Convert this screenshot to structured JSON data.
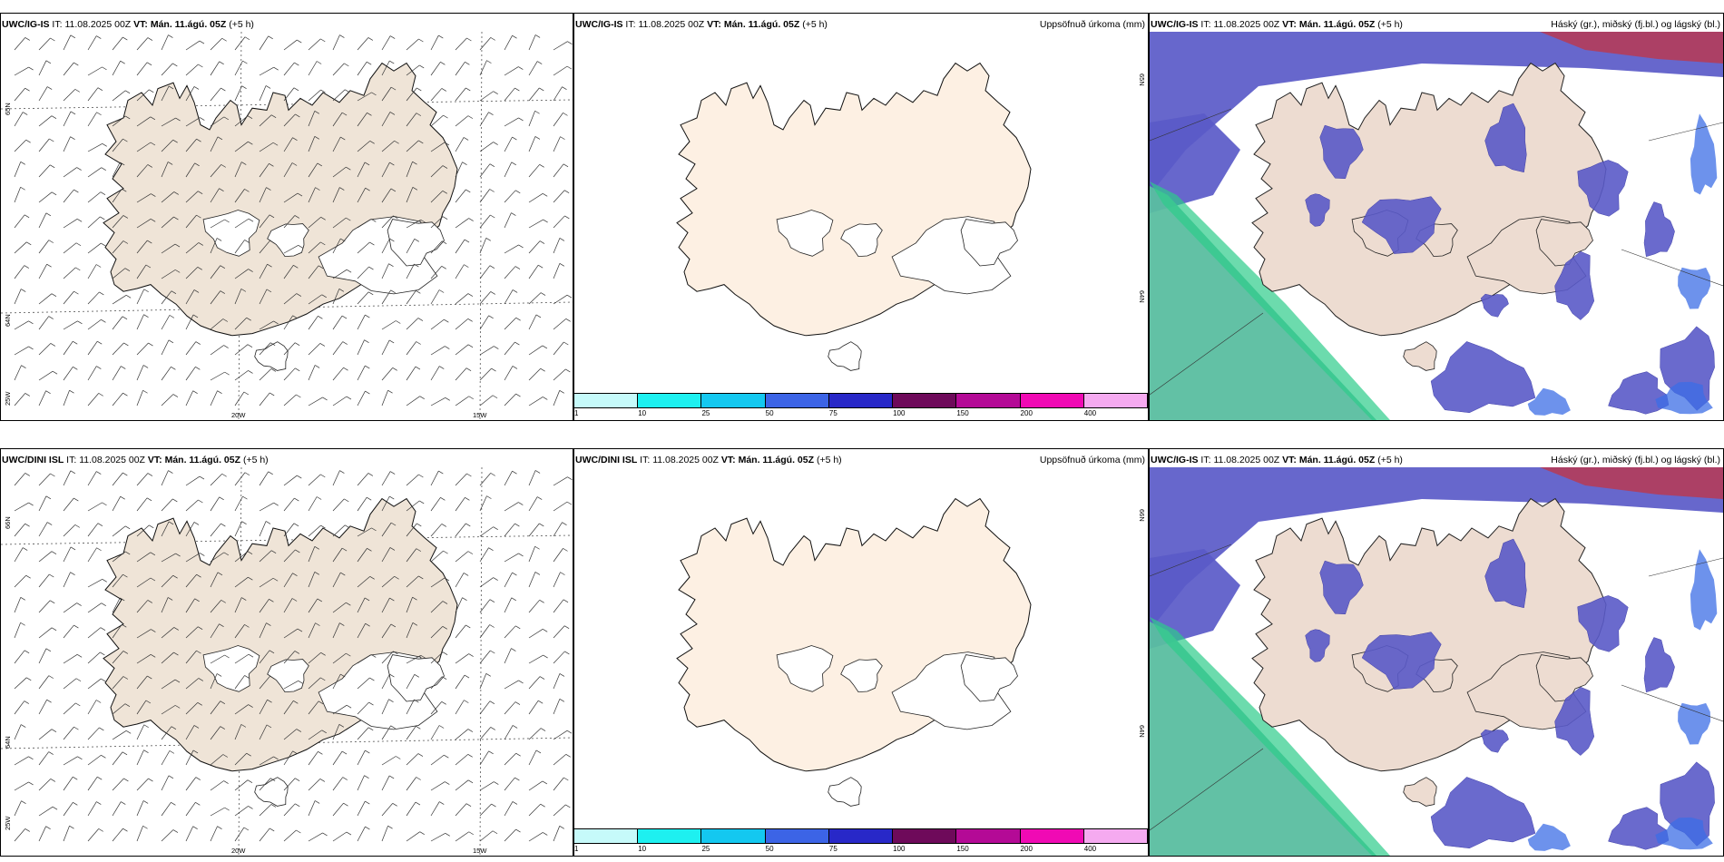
{
  "rows": [
    {
      "wind_panel": {
        "model": "UWC/IG-IS",
        "it_label": "IT:",
        "it_value": "11.08.2025 00Z",
        "vt_label": "VT: Mán. 11.ágú. 05Z",
        "lead": "(+5 h)",
        "lat_labels": [
          "65N",
          "64N",
          "25W"
        ],
        "lon_labels": [
          "20W",
          "15W"
        ]
      },
      "precip_panel": {
        "model": "UWC/IG-IS",
        "it_label": "IT:",
        "it_value": "11.08.2025 00Z",
        "vt_label": "VT: Mán. 11.ágú. 05Z",
        "lead": "(+5 h)",
        "title": "Uppsöfnuð úrkoma (mm)",
        "lat_labels": [
          "65N",
          "64N"
        ]
      },
      "cloud_panel": {
        "model": "UWC/IG-IS",
        "it_label": "IT:",
        "it_value": "11.08.2025 00Z",
        "vt_label": "VT: Mán. 11.ágú. 05Z",
        "lead": "(+5 h)",
        "title": "Háský (gr.), miðský (fj.bl.) og lágský (bl.)"
      }
    },
    {
      "wind_panel": {
        "model": "UWC/DINI ISL",
        "it_label": "IT:",
        "it_value": "11.08.2025 00Z",
        "vt_label": "VT: Mán. 11.ágú. 05Z",
        "lead": "(+5 h)",
        "lat_labels": [
          "66N",
          "64N",
          "25W"
        ],
        "lon_labels": [
          "20W",
          "15W"
        ]
      },
      "precip_panel": {
        "model": "UWC/DINI ISL",
        "it_label": "IT:",
        "it_value": "11.08.2025 00Z",
        "vt_label": "VT: Mán. 11.ágú. 05Z",
        "lead": "(+5 h)",
        "title": "Uppsöfnuð úrkoma (mm)",
        "lat_labels": [
          "66N",
          "64N"
        ]
      },
      "cloud_panel": {
        "model": "UWC/IG-IS",
        "it_label": "IT:",
        "it_value": "11.08.2025 00Z",
        "vt_label": "VT: Mán. 11.ágú. 05Z",
        "lead": "(+5 h)",
        "title": "Háský (gr.), miðský (fj.bl.) og lágský (bl.)"
      }
    }
  ],
  "precip_legend": {
    "thresholds": [
      "1",
      "10",
      "25",
      "50",
      "75",
      "100",
      "150",
      "200",
      "400"
    ],
    "colors": [
      "#c6fafa",
      "#1ef0f0",
      "#14c8f0",
      "#3c64e6",
      "#2828c8",
      "#6e0a5a",
      "#b40a96",
      "#f00ab4",
      "#f5aaf0"
    ]
  },
  "colors": {
    "land_wind": "#efe4d7",
    "land_precip": "#fdf0e3",
    "land_cloud": "#eddcd1",
    "high_cloud": "#5a5ac8",
    "mid_cloud_light": "#3c6ee6",
    "low_cloud_green": "#5abea0",
    "high_cloud_red": "#b43c5a"
  }
}
